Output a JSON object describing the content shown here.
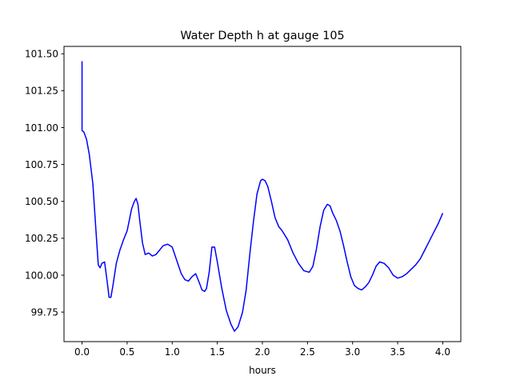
{
  "chart_data": {
    "type": "line",
    "title": "Water Depth h at gauge 105",
    "xlabel": "hours",
    "ylabel": "",
    "xlim": [
      -0.2,
      4.2
    ],
    "ylim": [
      99.55,
      101.55
    ],
    "xticks": [
      0.0,
      0.5,
      1.0,
      1.5,
      2.0,
      2.5,
      3.0,
      3.5,
      4.0
    ],
    "xtick_labels": [
      "0.0",
      "0.5",
      "1.0",
      "1.5",
      "2.0",
      "2.5",
      "3.0",
      "3.5",
      "4.0"
    ],
    "yticks": [
      99.75,
      100.0,
      100.25,
      100.5,
      100.75,
      101.0,
      101.25,
      101.5
    ],
    "ytick_labels": [
      "99.75",
      "100.00",
      "100.25",
      "100.50",
      "100.75",
      "101.00",
      "101.25",
      "101.50"
    ],
    "grid": false,
    "legend": "none",
    "series": [
      {
        "color": "#0000ff",
        "x": [
          0.0,
          0.0,
          0.02,
          0.05,
          0.08,
          0.12,
          0.16,
          0.18,
          0.2,
          0.22,
          0.25,
          0.28,
          0.3,
          0.32,
          0.34,
          0.38,
          0.42,
          0.46,
          0.5,
          0.55,
          0.58,
          0.6,
          0.62,
          0.64,
          0.67,
          0.7,
          0.74,
          0.78,
          0.82,
          0.86,
          0.9,
          0.95,
          1.0,
          1.05,
          1.1,
          1.14,
          1.18,
          1.22,
          1.26,
          1.3,
          1.33,
          1.36,
          1.38,
          1.41,
          1.44,
          1.47,
          1.5,
          1.55,
          1.6,
          1.65,
          1.69,
          1.73,
          1.78,
          1.82,
          1.86,
          1.9,
          1.94,
          1.98,
          2.0,
          2.03,
          2.06,
          2.1,
          2.14,
          2.18,
          2.22,
          2.28,
          2.34,
          2.4,
          2.46,
          2.52,
          2.56,
          2.6,
          2.64,
          2.68,
          2.72,
          2.75,
          2.78,
          2.82,
          2.86,
          2.9,
          2.94,
          2.98,
          3.02,
          3.06,
          3.1,
          3.14,
          3.18,
          3.22,
          3.26,
          3.3,
          3.35,
          3.4,
          3.45,
          3.5,
          3.55,
          3.6,
          3.65,
          3.7,
          3.75,
          3.8,
          3.85,
          3.9,
          3.95,
          4.0
        ],
        "values": [
          101.45,
          100.98,
          100.97,
          100.92,
          100.82,
          100.62,
          100.25,
          100.07,
          100.05,
          100.08,
          100.09,
          99.95,
          99.85,
          99.85,
          99.92,
          100.08,
          100.17,
          100.24,
          100.3,
          100.45,
          100.5,
          100.52,
          100.48,
          100.37,
          100.22,
          100.14,
          100.15,
          100.13,
          100.14,
          100.17,
          100.2,
          100.21,
          100.19,
          100.1,
          100.01,
          99.97,
          99.96,
          99.99,
          100.01,
          99.95,
          99.9,
          99.89,
          99.91,
          100.02,
          100.19,
          100.19,
          100.09,
          99.91,
          99.76,
          99.67,
          99.62,
          99.65,
          99.75,
          99.9,
          100.14,
          100.36,
          100.55,
          100.64,
          100.65,
          100.64,
          100.6,
          100.5,
          100.39,
          100.33,
          100.3,
          100.24,
          100.15,
          100.08,
          100.03,
          100.02,
          100.06,
          100.18,
          100.33,
          100.44,
          100.48,
          100.47,
          100.42,
          100.37,
          100.3,
          100.2,
          100.09,
          99.99,
          99.93,
          99.91,
          99.9,
          99.92,
          99.95,
          100.0,
          100.06,
          100.09,
          100.08,
          100.05,
          100.0,
          99.98,
          99.99,
          100.01,
          100.04,
          100.07,
          100.11,
          100.17,
          100.23,
          100.29,
          100.35,
          100.42
        ]
      }
    ]
  }
}
